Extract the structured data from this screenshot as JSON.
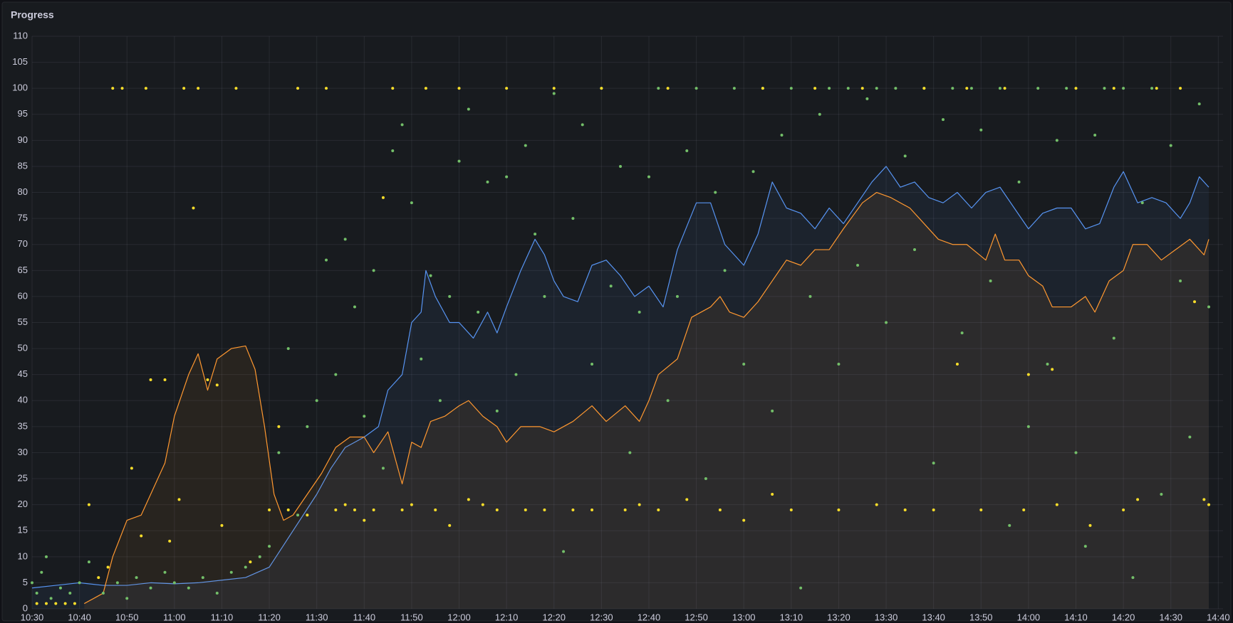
{
  "chart_data": {
    "type": "timeseries",
    "title": "Progress",
    "xlim": [
      "10:30",
      "14:41"
    ],
    "xticks": [
      "10:30",
      "10:40",
      "10:50",
      "11:00",
      "11:10",
      "11:20",
      "11:30",
      "11:40",
      "11:50",
      "12:00",
      "12:10",
      "12:20",
      "12:30",
      "12:40",
      "12:50",
      "13:00",
      "13:10",
      "13:20",
      "13:30",
      "13:40",
      "13:50",
      "14:00",
      "14:10",
      "14:20",
      "14:30",
      "14:40"
    ],
    "ylim": [
      0,
      110
    ],
    "yticks": [
      0,
      5,
      10,
      15,
      20,
      25,
      30,
      35,
      40,
      45,
      50,
      55,
      60,
      65,
      70,
      75,
      80,
      85,
      90,
      95,
      100,
      105,
      110
    ],
    "grid": true,
    "series": [
      {
        "style": "points",
        "color": "#73bf69",
        "x": [
          "10:30",
          "10:31",
          "10:32",
          "10:33",
          "10:34",
          "10:36",
          "10:38",
          "10:40",
          "10:42",
          "10:45",
          "10:48",
          "10:50",
          "10:52",
          "10:55",
          "10:58",
          "11:00",
          "11:03",
          "11:06",
          "11:09",
          "11:12",
          "11:15",
          "11:18",
          "11:20",
          "11:22",
          "11:24",
          "11:26",
          "11:28",
          "11:30",
          "11:32",
          "11:34",
          "11:36",
          "11:38",
          "11:40",
          "11:42",
          "11:44",
          "11:46",
          "11:48",
          "11:50",
          "11:52",
          "11:54",
          "11:56",
          "11:58",
          "12:00",
          "12:02",
          "12:04",
          "12:06",
          "12:08",
          "12:10",
          "12:12",
          "12:14",
          "12:16",
          "12:18",
          "12:20",
          "12:22",
          "12:24",
          "12:26",
          "12:28",
          "12:30",
          "12:32",
          "12:34",
          "12:36",
          "12:38",
          "12:40",
          "12:42",
          "12:44",
          "12:46",
          "12:48",
          "12:50",
          "12:52",
          "12:54",
          "12:56",
          "12:58",
          "13:00",
          "13:02",
          "13:04",
          "13:06",
          "13:08",
          "13:10",
          "13:12",
          "13:14",
          "13:16",
          "13:18",
          "13:20",
          "13:22",
          "13:24",
          "13:26",
          "13:28",
          "13:30",
          "13:32",
          "13:34",
          "13:36",
          "13:38",
          "13:40",
          "13:42",
          "13:44",
          "13:46",
          "13:48",
          "13:50",
          "13:52",
          "13:54",
          "13:56",
          "13:58",
          "14:00",
          "14:02",
          "14:04",
          "14:06",
          "14:08",
          "14:10",
          "14:12",
          "14:14",
          "14:16",
          "14:18",
          "14:20",
          "14:22",
          "14:24",
          "14:26",
          "14:28",
          "14:30",
          "14:32",
          "14:34",
          "14:36",
          "14:38"
        ],
        "values": [
          5,
          3,
          7,
          10,
          2,
          4,
          3,
          5,
          9,
          3,
          5,
          2,
          6,
          4,
          7,
          5,
          4,
          6,
          3,
          7,
          8,
          10,
          12,
          30,
          50,
          18,
          35,
          40,
          67,
          45,
          71,
          58,
          37,
          65,
          27,
          88,
          93,
          78,
          48,
          64,
          40,
          60,
          86,
          96,
          57,
          82,
          38,
          83,
          45,
          89,
          72,
          60,
          99,
          11,
          75,
          93,
          47,
          100,
          62,
          85,
          30,
          57,
          83,
          100,
          40,
          60,
          88,
          100,
          25,
          80,
          65,
          100,
          47,
          84,
          100,
          38,
          91,
          100,
          4,
          60,
          95,
          100,
          47,
          100,
          66,
          98,
          100,
          55,
          100,
          87,
          69,
          100,
          28,
          94,
          100,
          53,
          100,
          92,
          63,
          100,
          16,
          82,
          35,
          100,
          47,
          90,
          100,
          30,
          12,
          91,
          100,
          52,
          100,
          6,
          78,
          100,
          22,
          89,
          63,
          33,
          97,
          58
        ]
      },
      {
        "style": "points",
        "color": "#fade2a",
        "x": [
          "10:31",
          "10:33",
          "10:35",
          "10:37",
          "10:39",
          "10:42",
          "10:44",
          "10:46",
          "10:47",
          "10:49",
          "10:51",
          "10:53",
          "10:54",
          "10:55",
          "10:58",
          "10:59",
          "11:01",
          "11:02",
          "11:04",
          "11:05",
          "11:07",
          "11:09",
          "11:10",
          "11:13",
          "11:16",
          "11:20",
          "11:22",
          "11:24",
          "11:26",
          "11:28",
          "11:32",
          "11:34",
          "11:36",
          "11:38",
          "11:40",
          "11:42",
          "11:44",
          "11:46",
          "11:48",
          "11:50",
          "11:53",
          "11:55",
          "11:58",
          "12:00",
          "12:02",
          "12:05",
          "12:08",
          "12:10",
          "12:14",
          "12:18",
          "12:20",
          "12:24",
          "12:28",
          "12:30",
          "12:35",
          "12:38",
          "12:42",
          "12:44",
          "12:48",
          "12:55",
          "13:00",
          "13:04",
          "13:06",
          "13:10",
          "13:15",
          "13:20",
          "13:25",
          "13:28",
          "13:34",
          "13:38",
          "13:40",
          "13:45",
          "13:47",
          "13:50",
          "13:55",
          "13:59",
          "14:00",
          "14:05",
          "14:06",
          "14:10",
          "14:13",
          "14:18",
          "14:20",
          "14:23",
          "14:27",
          "14:32",
          "14:35",
          "14:37",
          "14:38"
        ],
        "values": [
          1,
          1,
          1,
          1,
          1,
          20,
          6,
          8,
          100,
          100,
          27,
          14,
          100,
          44,
          44,
          13,
          21,
          100,
          77,
          100,
          44,
          43,
          16,
          100,
          9,
          19,
          35,
          19,
          100,
          18,
          100,
          19,
          20,
          19,
          17,
          19,
          79,
          100,
          19,
          20,
          100,
          19,
          16,
          100,
          21,
          20,
          19,
          100,
          19,
          19,
          100,
          19,
          19,
          100,
          19,
          20,
          19,
          100,
          21,
          19,
          17,
          100,
          22,
          19,
          100,
          19,
          100,
          20,
          19,
          100,
          19,
          47,
          100,
          19,
          100,
          19,
          45,
          46,
          20,
          100,
          16,
          100,
          19,
          21,
          100,
          100,
          59,
          21,
          20
        ]
      },
      {
        "style": "line",
        "color": "#5794f2",
        "x": [
          "10:30",
          "10:35",
          "10:40",
          "10:45",
          "10:50",
          "10:55",
          "11:00",
          "11:05",
          "11:10",
          "11:15",
          "11:20",
          "11:25",
          "11:30",
          "11:33",
          "11:36",
          "11:40",
          "11:43",
          "11:45",
          "11:48",
          "11:50",
          "11:52",
          "11:53",
          "11:55",
          "11:58",
          "12:00",
          "12:03",
          "12:06",
          "12:08",
          "12:10",
          "12:13",
          "12:16",
          "12:18",
          "12:20",
          "12:22",
          "12:25",
          "12:28",
          "12:31",
          "12:34",
          "12:37",
          "12:40",
          "12:43",
          "12:46",
          "12:50",
          "12:53",
          "12:56",
          "13:00",
          "13:03",
          "13:06",
          "13:09",
          "13:12",
          "13:15",
          "13:18",
          "13:21",
          "13:24",
          "13:27",
          "13:30",
          "13:33",
          "13:36",
          "13:39",
          "13:42",
          "13:45",
          "13:48",
          "13:51",
          "13:54",
          "13:57",
          "14:00",
          "14:03",
          "14:06",
          "14:09",
          "14:12",
          "14:15",
          "14:18",
          "14:20",
          "14:23",
          "14:26",
          "14:29",
          "14:32",
          "14:34",
          "14:36",
          "14:38"
        ],
        "values": [
          4,
          4.5,
          5,
          4.5,
          4.5,
          5,
          4.8,
          5,
          5.5,
          6,
          8,
          15,
          22,
          27,
          31,
          33,
          35,
          42,
          45,
          55,
          57,
          65,
          60,
          55,
          55,
          52,
          57,
          53,
          58,
          65,
          71,
          68,
          63,
          60,
          59,
          66,
          67,
          64,
          60,
          62,
          58,
          69,
          78,
          78,
          70,
          66,
          72,
          82,
          77,
          76,
          73,
          77,
          74,
          78,
          82,
          85,
          81,
          82,
          79,
          78,
          80,
          77,
          80,
          81,
          77,
          73,
          76,
          77,
          77,
          73,
          74,
          81,
          84,
          78,
          79,
          78,
          75,
          78,
          83,
          81
        ]
      },
      {
        "style": "line",
        "color": "#ff9830",
        "x": [
          "10:41",
          "10:45",
          "10:47",
          "10:50",
          "10:53",
          "10:55",
          "10:58",
          "11:00",
          "11:03",
          "11:05",
          "11:07",
          "11:09",
          "11:12",
          "11:15",
          "11:17",
          "11:19",
          "11:21",
          "11:23",
          "11:25",
          "11:28",
          "11:31",
          "11:34",
          "11:37",
          "11:40",
          "11:42",
          "11:45",
          "11:48",
          "11:50",
          "11:52",
          "11:54",
          "11:57",
          "12:00",
          "12:02",
          "12:05",
          "12:08",
          "12:10",
          "12:13",
          "12:17",
          "12:20",
          "12:24",
          "12:28",
          "12:31",
          "12:35",
          "12:38",
          "12:40",
          "12:42",
          "12:46",
          "12:49",
          "12:53",
          "12:55",
          "12:57",
          "13:00",
          "13:03",
          "13:06",
          "13:09",
          "13:12",
          "13:15",
          "13:18",
          "13:21",
          "13:25",
          "13:28",
          "13:31",
          "13:35",
          "13:38",
          "13:41",
          "13:44",
          "13:47",
          "13:51",
          "13:53",
          "13:55",
          "13:58",
          "14:00",
          "14:03",
          "14:05",
          "14:09",
          "14:12",
          "14:14",
          "14:17",
          "14:20",
          "14:22",
          "14:25",
          "14:28",
          "14:31",
          "14:34",
          "14:37",
          "14:38"
        ],
        "values": [
          1,
          3,
          10,
          17,
          18,
          22,
          28,
          37,
          45,
          49,
          42,
          48,
          50,
          50.5,
          46,
          35,
          22,
          17,
          18,
          22,
          26,
          31,
          33,
          33,
          30,
          34,
          24,
          32,
          31,
          36,
          37,
          39,
          40,
          37,
          35,
          32,
          35,
          35,
          34,
          36,
          39,
          36,
          39,
          36,
          40,
          45,
          48,
          56,
          58,
          60,
          57,
          56,
          59,
          63,
          67,
          66,
          69,
          69,
          73,
          78,
          80,
          79,
          77,
          74,
          71,
          70,
          70,
          67,
          72,
          67,
          67,
          64,
          62,
          58,
          58,
          60,
          57,
          63,
          65,
          70,
          70,
          67,
          69,
          71,
          68,
          71
        ]
      }
    ]
  }
}
